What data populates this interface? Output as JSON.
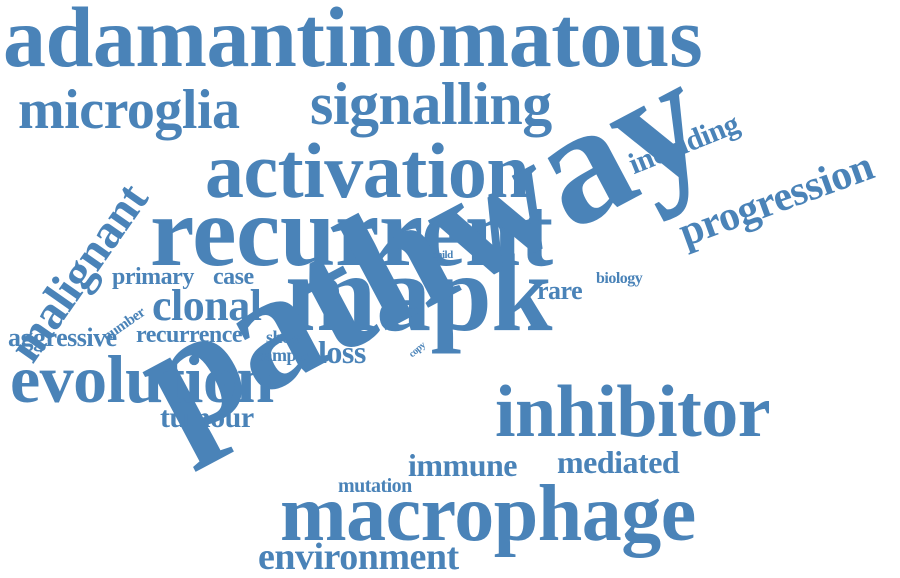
{
  "color": "#4a83b8",
  "words": [
    "adamantinomatous",
    "microglia",
    "signalling",
    "activation",
    "including",
    "progression",
    "malignant",
    "recurrent",
    "mapk",
    "pathway",
    "child",
    "primary",
    "case",
    "biology",
    "rare",
    "clonal",
    "number",
    "aggressive",
    "recurrence",
    "show",
    "copy",
    "sample",
    "loss",
    "evolution",
    "inhibitor",
    "tumour",
    "immune",
    "mediated",
    "mutation",
    "macrophage",
    "environment"
  ]
}
